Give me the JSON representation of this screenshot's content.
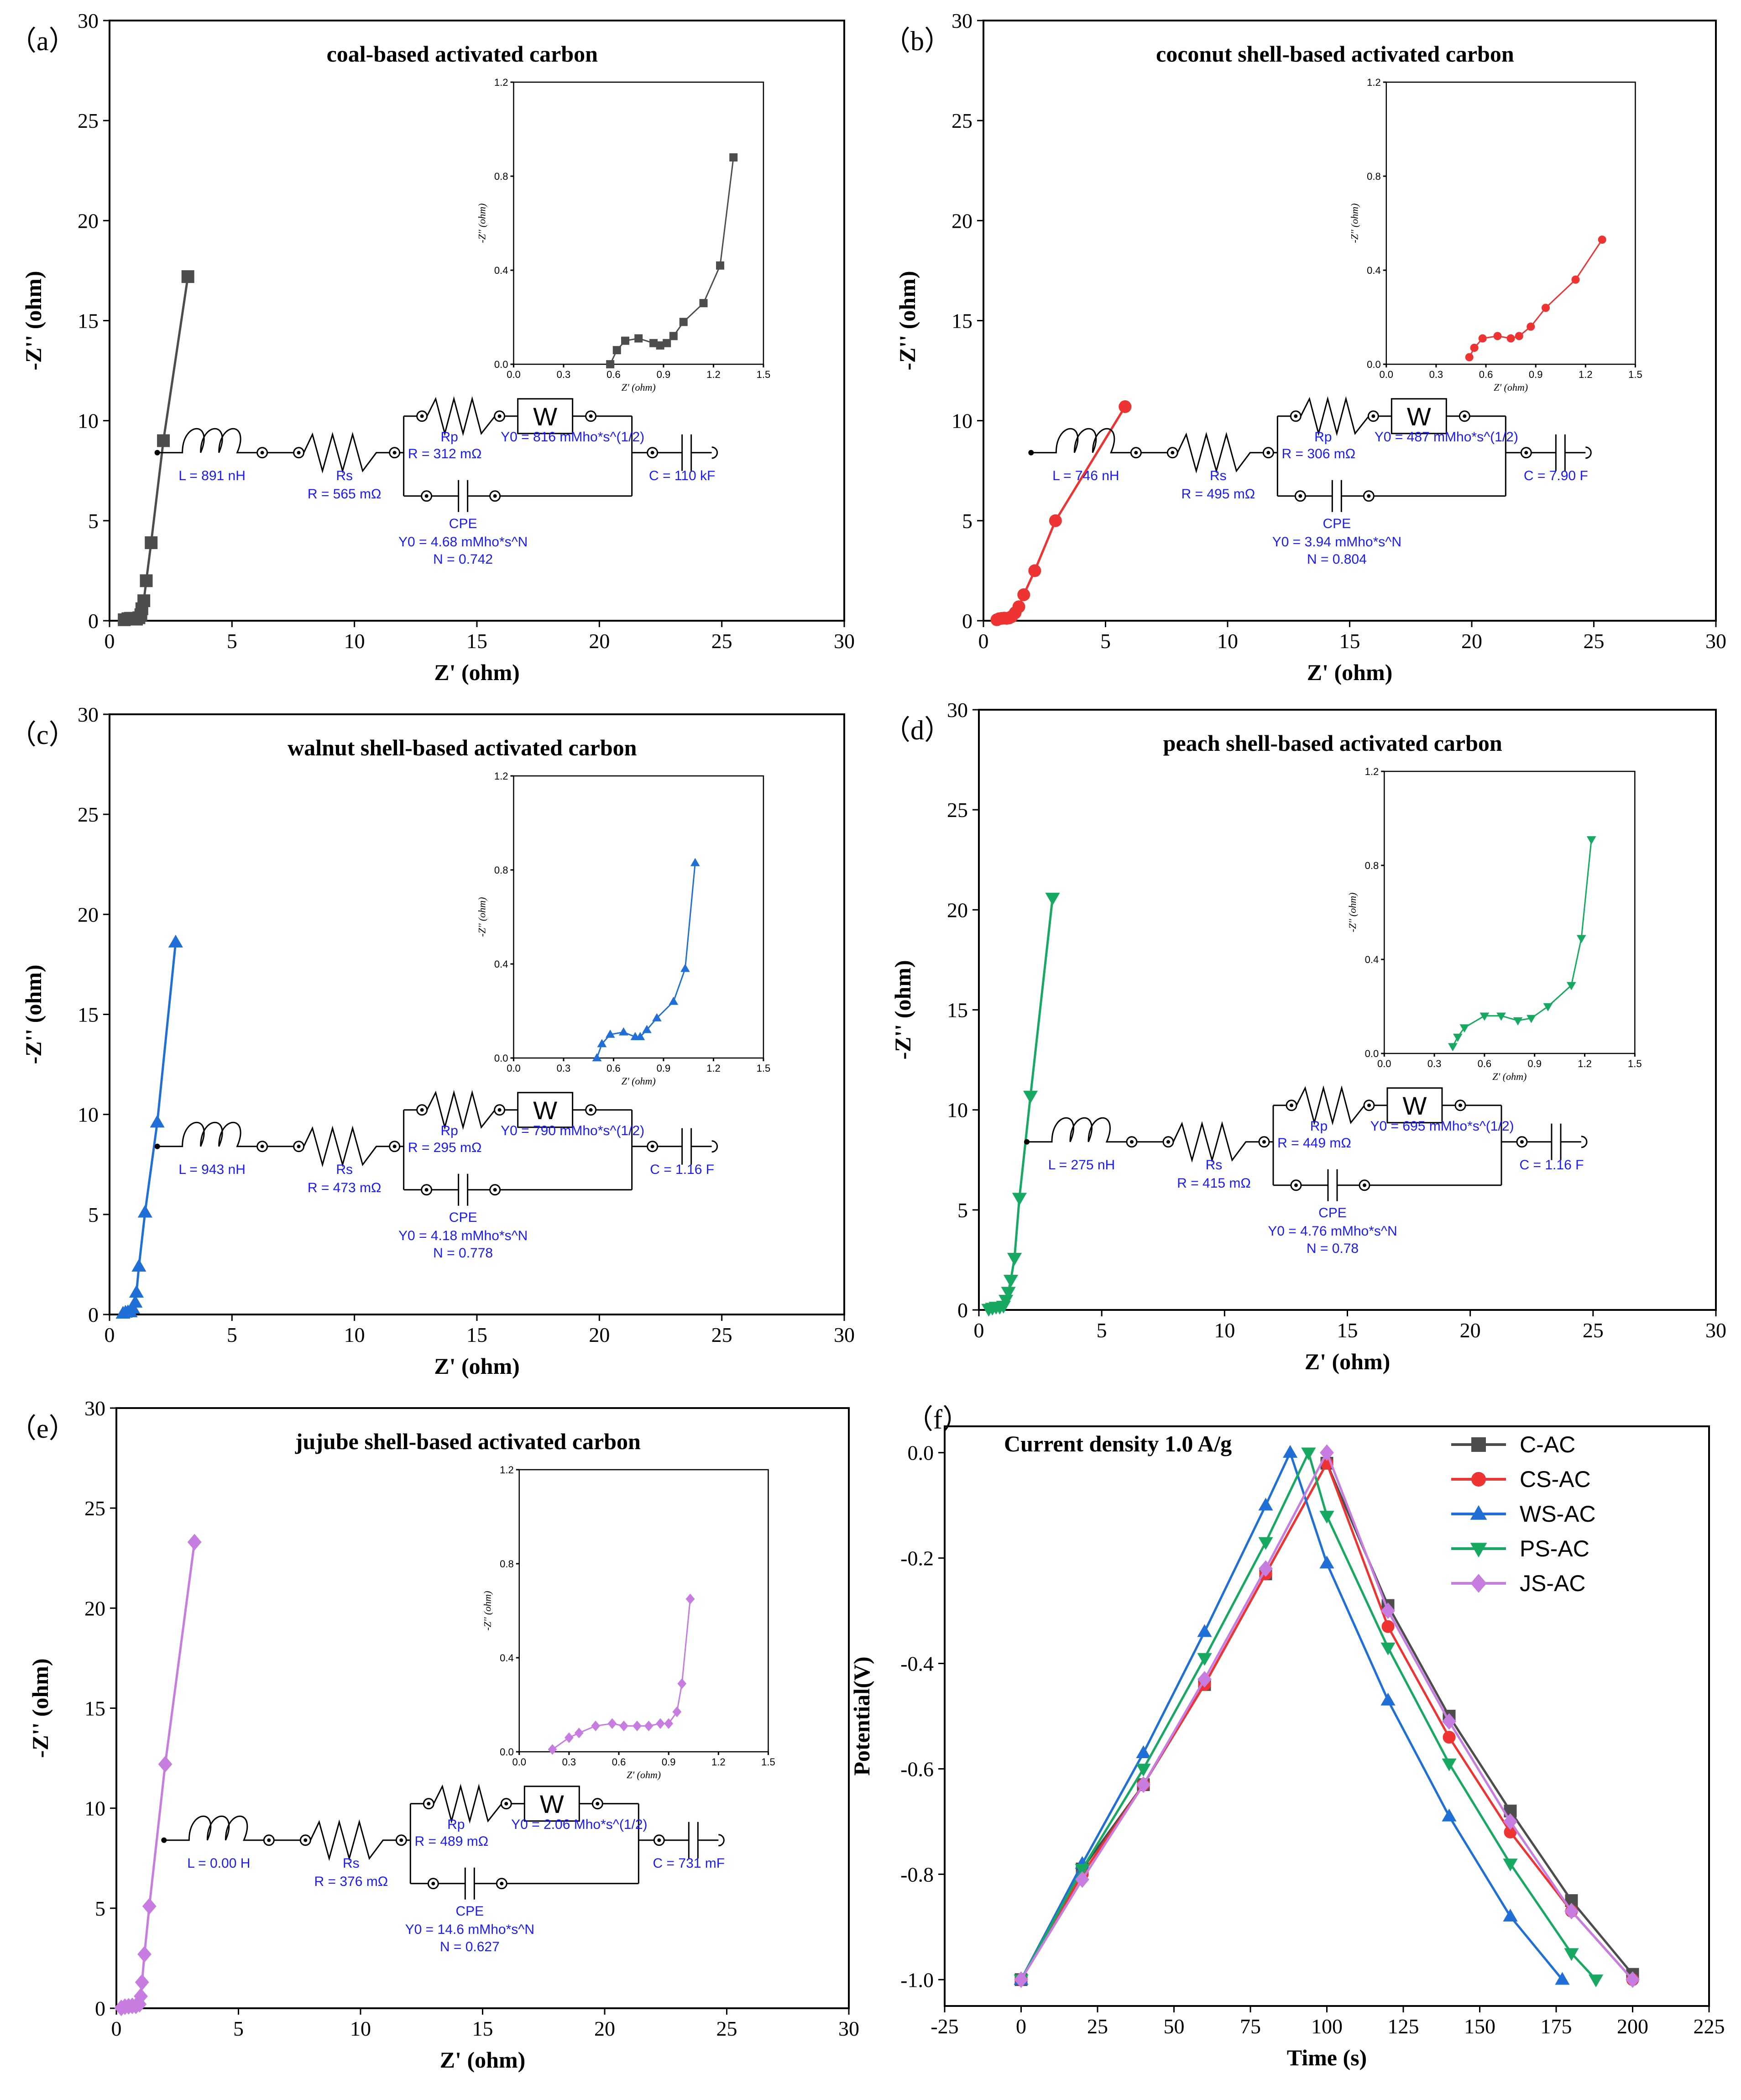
{
  "panels": [
    {
      "label": "（a）",
      "title": "coal-based activated carbon",
      "color": "#4d4d4d",
      "marker": "square",
      "chart_data": {
        "type": "scatter",
        "title": "coal-based activated carbon",
        "xlabel": "Z' (ohm)",
        "ylabel": "-Z'' (ohm)",
        "xlim": [
          0,
          30
        ],
        "ylim": [
          0,
          30
        ],
        "xticks": [
          0,
          5,
          10,
          15,
          20,
          25,
          30
        ],
        "yticks": [
          0,
          5,
          10,
          15,
          20,
          25,
          30
        ],
        "x": [
          0.6,
          0.75,
          0.85,
          0.95,
          1.02,
          1.1,
          1.2,
          1.28,
          1.32,
          1.4,
          1.5,
          1.7,
          2.2,
          3.2
        ],
        "y": [
          0.05,
          0.1,
          0.12,
          0.12,
          0.1,
          0.08,
          0.15,
          0.3,
          0.6,
          1.0,
          2.0,
          3.9,
          9.0,
          17.2
        ]
      },
      "inset": {
        "xlim": [
          0,
          1.5
        ],
        "ylim": [
          0,
          1.2
        ],
        "xticks": [
          "0.0",
          "0.3",
          "0.6",
          "0.9",
          "1.2",
          "1.5"
        ],
        "yticks": [
          "0.0",
          "0.4",
          "0.8",
          "1.2"
        ],
        "xlabel": "Z' (ohm)",
        "ylabel": "-Z'' (ohm)",
        "x": [
          0.58,
          0.62,
          0.67,
          0.75,
          0.84,
          0.88,
          0.92,
          0.96,
          1.02,
          1.14,
          1.24,
          1.32
        ],
        "y": [
          0.0,
          0.06,
          0.1,
          0.11,
          0.09,
          0.08,
          0.09,
          0.12,
          0.18,
          0.26,
          0.42,
          0.88
        ]
      },
      "circuit": {
        "L": "L = 891 nH",
        "Rs_name": "Rs",
        "Rs": "R = 565 mΩ",
        "Rp_name": "Rp",
        "Rp": "R = 312 mΩ",
        "W_label": "W",
        "W": "Y0 = 816 mMho*s^(1/2)",
        "CPE_name": "CPE",
        "CPE_Y0": "Y0 = 4.68 mMho*s^N",
        "CPE_N": "N = 0.742",
        "C": "C = 110 kF"
      }
    },
    {
      "label": "（b）",
      "title": "coconut shell-based activated carbon",
      "color": "#ee3333",
      "marker": "circle",
      "chart_data": {
        "type": "scatter",
        "title": "coconut shell-based activated carbon",
        "xlabel": "Z' (ohm)",
        "ylabel": "-Z'' (ohm)",
        "xlim": [
          0,
          30
        ],
        "ylim": [
          0,
          30
        ],
        "xticks": [
          0,
          5,
          10,
          15,
          20,
          25,
          30
        ],
        "yticks": [
          0,
          5,
          10,
          15,
          20,
          25,
          30
        ],
        "x": [
          0.55,
          0.65,
          0.75,
          0.85,
          0.95,
          1.05,
          1.15,
          1.3,
          1.45,
          1.65,
          2.1,
          2.95,
          5.8
        ],
        "y": [
          0.05,
          0.1,
          0.12,
          0.13,
          0.12,
          0.14,
          0.2,
          0.4,
          0.7,
          1.3,
          2.5,
          5.0,
          10.7
        ]
      },
      "inset": {
        "xlim": [
          0,
          1.5
        ],
        "ylim": [
          0,
          1.2
        ],
        "xticks": [
          "0.0",
          "0.3",
          "0.6",
          "0.9",
          "1.2",
          "1.5"
        ],
        "yticks": [
          "0.0",
          "0.4",
          "0.8",
          "1.2"
        ],
        "xlabel": "Z' (ohm)",
        "ylabel": "-Z'' (ohm)",
        "x": [
          0.5,
          0.53,
          0.58,
          0.67,
          0.75,
          0.8,
          0.87,
          0.96,
          1.14,
          1.3
        ],
        "y": [
          0.03,
          0.07,
          0.11,
          0.12,
          0.11,
          0.12,
          0.16,
          0.24,
          0.36,
          0.53
        ]
      },
      "circuit": {
        "L": "L = 746 nH",
        "Rs_name": "Rs",
        "Rs": "R = 495 mΩ",
        "Rp_name": "Rp",
        "Rp": "R = 306 mΩ",
        "W_label": "W",
        "W": "Y0 = 487 mMho*s^(1/2)",
        "CPE_name": "CPE",
        "CPE_Y0": "Y0 = 3.94 mMho*s^N",
        "CPE_N": "N = 0.804",
        "C": "C = 7.90 F"
      }
    },
    {
      "label": "（c）",
      "title": "walnut shell-based activated carbon",
      "color": "#1f6fd6",
      "marker": "triangle-up",
      "chart_data": {
        "type": "scatter",
        "title": "walnut shell-based activated carbon",
        "xlabel": "Z' (ohm)",
        "ylabel": "-Z'' (ohm)",
        "xlim": [
          0,
          30
        ],
        "ylim": [
          0,
          30
        ],
        "xticks": [
          0,
          5,
          10,
          15,
          20,
          25,
          30
        ],
        "yticks": [
          0,
          5,
          10,
          15,
          20,
          25,
          30
        ],
        "x": [
          0.55,
          0.65,
          0.75,
          0.85,
          0.95,
          1.05,
          1.1,
          1.2,
          1.45,
          1.95,
          2.7
        ],
        "y": [
          0.05,
          0.1,
          0.12,
          0.12,
          0.3,
          0.6,
          1.1,
          2.4,
          5.1,
          9.6,
          18.6
        ]
      },
      "inset": {
        "xlim": [
          0,
          1.5
        ],
        "ylim": [
          0,
          1.2
        ],
        "xticks": [
          "0.0",
          "0.3",
          "0.6",
          "0.9",
          "1.2",
          "1.5"
        ],
        "yticks": [
          "0.0",
          "0.4",
          "0.8",
          "1.2"
        ],
        "xlabel": "Z' (ohm)",
        "ylabel": "-Z'' (ohm)",
        "x": [
          0.5,
          0.53,
          0.58,
          0.66,
          0.73,
          0.76,
          0.8,
          0.86,
          0.96,
          1.03,
          1.09
        ],
        "y": [
          0.0,
          0.06,
          0.1,
          0.11,
          0.09,
          0.09,
          0.12,
          0.17,
          0.24,
          0.38,
          0.83
        ]
      },
      "circuit": {
        "L": "L = 943 nH",
        "Rs_name": "Rs",
        "Rs": "R = 473 mΩ",
        "Rp_name": "Rp",
        "Rp": "R = 295 mΩ",
        "W_label": "W",
        "W": "Y0 = 790 mMho*s^(1/2)",
        "CPE_name": "CPE",
        "CPE_Y0": "Y0 = 4.18 mMho*s^N",
        "CPE_N": "N = 0.778",
        "C": "C = 1.16 F"
      }
    },
    {
      "label": "（d）",
      "title": "peach shell-based activated carbon",
      "color": "#17a862",
      "marker": "triangle-down",
      "chart_data": {
        "type": "scatter",
        "title": "peach shell-based activated carbon",
        "xlabel": "Z' (ohm)",
        "ylabel": "-Z'' (ohm)",
        "xlim": [
          0,
          30
        ],
        "ylim": [
          0,
          30
        ],
        "xticks": [
          0,
          5,
          10,
          15,
          20,
          25,
          30
        ],
        "yticks": [
          0,
          5,
          10,
          15,
          20,
          25,
          30
        ],
        "x": [
          0.4,
          0.55,
          0.7,
          0.85,
          1.0,
          1.1,
          1.2,
          1.3,
          1.45,
          1.65,
          2.1,
          3.0
        ],
        "y": [
          0.05,
          0.1,
          0.15,
          0.15,
          0.2,
          0.5,
          0.9,
          1.5,
          2.6,
          5.6,
          10.7,
          20.6
        ]
      },
      "inset": {
        "xlim": [
          0,
          1.5
        ],
        "ylim": [
          0,
          1.2
        ],
        "xticks": [
          "0.0",
          "0.3",
          "0.6",
          "0.9",
          "1.2",
          "1.5"
        ],
        "yticks": [
          "0.0",
          "0.4",
          "0.8",
          "1.2"
        ],
        "xlabel": "Z' (ohm)",
        "ylabel": "-Z'' (ohm)",
        "x": [
          0.41,
          0.44,
          0.48,
          0.6,
          0.7,
          0.8,
          0.88,
          0.98,
          1.12,
          1.18,
          1.24
        ],
        "y": [
          0.03,
          0.07,
          0.11,
          0.16,
          0.16,
          0.14,
          0.15,
          0.2,
          0.29,
          0.49,
          0.91
        ]
      },
      "circuit": {
        "L": "L = 275 nH",
        "Rs_name": "Rs",
        "Rs": "R = 415 mΩ",
        "Rp_name": "Rp",
        "Rp": "R = 449 mΩ",
        "W_label": "W",
        "W": "Y0 = 695 mMho*s^(1/2)",
        "CPE_name": "CPE",
        "CPE_Y0": "Y0 = 4.76 mMho*s^N",
        "CPE_N": "N = 0.78",
        "C": "C = 1.16 F"
      }
    },
    {
      "label": "（e）",
      "title": "jujube shell-based activated carbon",
      "color": "#c77de0",
      "marker": "diamond",
      "chart_data": {
        "type": "scatter",
        "title": "jujube shell-based activated carbon",
        "xlabel": "Z' (ohm)",
        "ylabel": "-Z'' (ohm)",
        "xlim": [
          0,
          30
        ],
        "ylim": [
          0,
          30
        ],
        "xticks": [
          0,
          5,
          10,
          15,
          20,
          25,
          30
        ],
        "yticks": [
          0,
          5,
          10,
          15,
          20,
          25,
          30
        ],
        "x": [
          0.2,
          0.35,
          0.5,
          0.65,
          0.8,
          0.95,
          1.0,
          1.05,
          1.15,
          1.35,
          2.0,
          3.2
        ],
        "y": [
          0.02,
          0.08,
          0.1,
          0.12,
          0.12,
          0.2,
          0.6,
          1.3,
          2.7,
          5.1,
          12.2,
          23.3
        ]
      },
      "inset": {
        "xlim": [
          0,
          1.5
        ],
        "ylim": [
          0,
          1.2
        ],
        "xticks": [
          "0.0",
          "0.3",
          "0.6",
          "0.9",
          "1.2",
          "1.5"
        ],
        "yticks": [
          "0.0",
          "0.4",
          "0.8",
          "1.2"
        ],
        "xlabel": "Z' (ohm)",
        "ylabel": "-Z'' (ohm)",
        "x": [
          0.2,
          0.3,
          0.36,
          0.46,
          0.56,
          0.63,
          0.71,
          0.78,
          0.85,
          0.9,
          0.95,
          0.98,
          1.03
        ],
        "y": [
          0.01,
          0.06,
          0.08,
          0.11,
          0.12,
          0.11,
          0.11,
          0.11,
          0.12,
          0.12,
          0.17,
          0.29,
          0.65
        ]
      },
      "circuit": {
        "L": "L = 0.00 H",
        "Rs_name": "Rs",
        "Rs": "R = 376 mΩ",
        "Rp_name": "Rp",
        "Rp": "R = 489 mΩ",
        "W_label": "W",
        "W": "Y0 = 2.06 Mho*s^(1/2)",
        "CPE_name": "CPE",
        "CPE_Y0": "Y0 = 14.6 mMho*s^N",
        "CPE_N": "N = 0.627",
        "C": "C = 731 mF"
      }
    }
  ],
  "panel_f": {
    "label": "（f）",
    "annotation": "Current density 1.0 A/g",
    "chart_data": {
      "type": "line",
      "xlabel": "Time (s)",
      "ylabel": "Potential(V)",
      "xlim": [
        -25,
        225
      ],
      "ylim": [
        -1.05,
        0.05
      ],
      "xticks": [
        -25,
        0,
        25,
        50,
        75,
        100,
        125,
        150,
        175,
        200,
        225
      ],
      "yticks": [
        "0.0",
        "-0.2",
        "-0.4",
        "-0.6",
        "-0.8",
        "-1.0"
      ],
      "series": [
        {
          "name": "C-AC",
          "color": "#4d4d4d",
          "marker": "square",
          "x": [
            0,
            20,
            40,
            60,
            80,
            100,
            120,
            140,
            160,
            180,
            200
          ],
          "y": [
            -1.0,
            -0.79,
            -0.63,
            -0.44,
            -0.23,
            -0.02,
            -0.29,
            -0.5,
            -0.68,
            -0.85,
            -0.99
          ]
        },
        {
          "name": "CS-AC",
          "color": "#ee3333",
          "marker": "circle",
          "x": [
            0,
            20,
            40,
            60,
            80,
            100,
            120,
            140,
            160,
            180,
            200
          ],
          "y": [
            -1.0,
            -0.8,
            -0.63,
            -0.44,
            -0.23,
            -0.02,
            -0.33,
            -0.54,
            -0.72,
            -0.87,
            -1.0
          ]
        },
        {
          "name": "WS-AC",
          "color": "#1f6fd6",
          "marker": "triangle-up",
          "x": [
            0,
            20,
            40,
            60,
            80,
            88,
            100,
            120,
            140,
            160,
            177
          ],
          "y": [
            -1.0,
            -0.78,
            -0.57,
            -0.34,
            -0.1,
            0.0,
            -0.21,
            -0.47,
            -0.69,
            -0.88,
            -1.0
          ]
        },
        {
          "name": "PS-AC",
          "color": "#17a862",
          "marker": "triangle-down",
          "x": [
            0,
            20,
            40,
            60,
            80,
            94,
            100,
            120,
            140,
            160,
            180,
            188
          ],
          "y": [
            -1.0,
            -0.79,
            -0.6,
            -0.39,
            -0.17,
            0.0,
            -0.12,
            -0.37,
            -0.59,
            -0.78,
            -0.95,
            -1.0
          ]
        },
        {
          "name": "JS-AC",
          "color": "#c77de0",
          "marker": "diamond",
          "x": [
            0,
            20,
            40,
            60,
            80,
            100,
            120,
            140,
            160,
            180,
            200
          ],
          "y": [
            -1.0,
            -0.81,
            -0.63,
            -0.43,
            -0.22,
            0.0,
            -0.3,
            -0.51,
            -0.7,
            -0.87,
            -1.0
          ]
        }
      ]
    }
  }
}
